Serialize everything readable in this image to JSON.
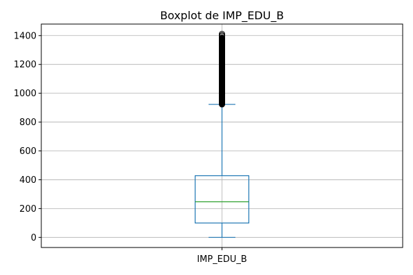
{
  "chart_data": {
    "type": "boxplot",
    "title": "Boxplot de IMP_EDU_B",
    "categories": [
      "IMP_EDU_B"
    ],
    "ylim": [
      -70,
      1480
    ],
    "yticks": [
      0,
      200,
      400,
      600,
      800,
      1000,
      1200,
      1400
    ],
    "grid": true,
    "box": {
      "whisker_low": 0,
      "q1": 100,
      "median": 247,
      "q3": 428,
      "whisker_high": 923
    },
    "outliers": {
      "min": 923,
      "max": 1411,
      "dense_top": 1385,
      "sparse": [
        1395,
        1402,
        1411
      ]
    },
    "colors": {
      "box": "#1f77b4",
      "median": "#2ca02c",
      "outlier": "#000000",
      "grid": "#b0b0b0"
    }
  }
}
